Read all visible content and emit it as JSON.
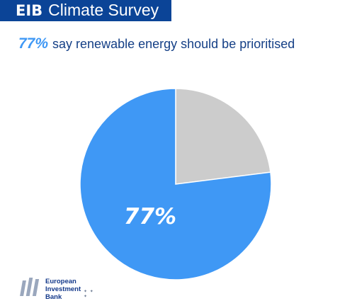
{
  "header": {
    "brand": "EIB",
    "title": "Climate Survey"
  },
  "headline": {
    "percent": "77%",
    "text": "say renewable energy should be prioritised"
  },
  "chart_data": {
    "type": "pie",
    "slices": [
      {
        "value": 77,
        "label": "77%",
        "color": "#3f98f5"
      },
      {
        "value": 23,
        "label": "",
        "color": "#cccccc"
      }
    ]
  },
  "footer": {
    "logo_lines": [
      "European",
      "Investment",
      "Bank"
    ]
  }
}
